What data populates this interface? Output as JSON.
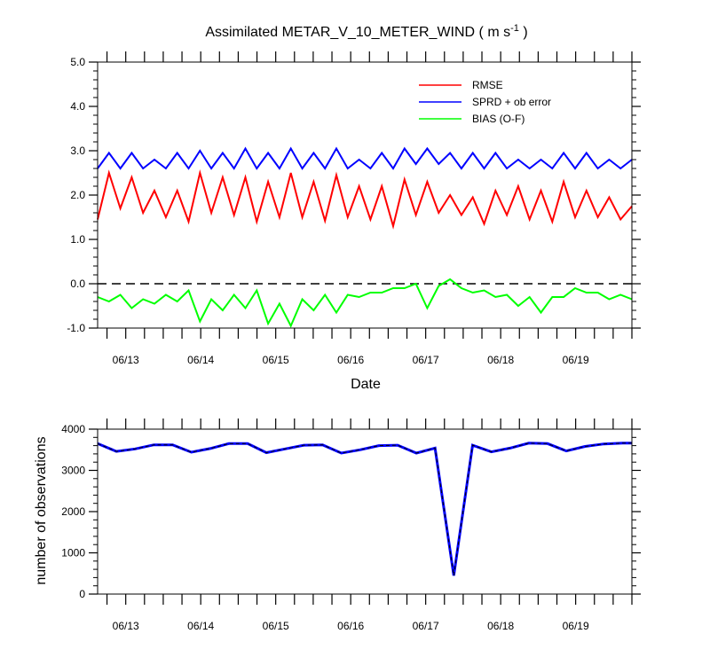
{
  "chart_data": [
    {
      "type": "line",
      "title": "Assimilated METAR_V_10_METER_WIND ( m s",
      "title_unit_exp": "-1",
      "title_suffix": " )",
      "xlabel": "Date",
      "ylabel": "",
      "ylim": [
        -1.0,
        5.0
      ],
      "yticks": [
        "-1.0",
        "0.0",
        "1.0",
        "2.0",
        "3.0",
        "4.0",
        "5.0"
      ],
      "xlim": [
        0,
        28.5
      ],
      "xtick_labels": [
        "06/13",
        "06/14",
        "06/15",
        "06/16",
        "06/17",
        "06/18",
        "06/19"
      ],
      "reference_line": 0.0,
      "legend_position": "top-right",
      "colors": {
        "RMSE": "#ff0000",
        "SPRD": "#0000ff",
        "BIAS": "#00ff00",
        "ref": "#000000"
      },
      "series": [
        {
          "name": "RMSE",
          "values": [
            1.45,
            2.5,
            1.7,
            2.4,
            1.6,
            2.1,
            1.5,
            2.1,
            1.4,
            2.5,
            1.6,
            2.4,
            1.55,
            2.4,
            1.4,
            2.3,
            1.5,
            2.5,
            1.5,
            2.3,
            1.42,
            2.45,
            1.5,
            2.2,
            1.45,
            2.2,
            1.3,
            2.35,
            1.55,
            2.3,
            1.6,
            2.0,
            1.55,
            1.95,
            1.35,
            2.1,
            1.55,
            2.2,
            1.45,
            2.1,
            1.4,
            2.3,
            1.5,
            2.1,
            1.5,
            1.95,
            1.45,
            1.75
          ]
        },
        {
          "name": "SPRD + ob error",
          "values": [
            2.6,
            2.95,
            2.6,
            2.95,
            2.6,
            2.8,
            2.6,
            2.95,
            2.6,
            3.0,
            2.6,
            2.95,
            2.6,
            3.05,
            2.6,
            2.95,
            2.6,
            3.05,
            2.6,
            2.95,
            2.6,
            3.05,
            2.6,
            2.8,
            2.6,
            2.95,
            2.6,
            3.05,
            2.7,
            3.05,
            2.7,
            2.95,
            2.6,
            2.95,
            2.6,
            2.95,
            2.6,
            2.8,
            2.6,
            2.8,
            2.6,
            2.95,
            2.6,
            2.95,
            2.6,
            2.8,
            2.6,
            2.8
          ]
        },
        {
          "name": "BIAS (O-F)",
          "values": [
            -0.3,
            -0.4,
            -0.25,
            -0.55,
            -0.35,
            -0.45,
            -0.25,
            -0.4,
            -0.15,
            -0.85,
            -0.35,
            -0.6,
            -0.25,
            -0.55,
            -0.15,
            -0.9,
            -0.45,
            -0.95,
            -0.35,
            -0.6,
            -0.25,
            -0.65,
            -0.25,
            -0.3,
            -0.2,
            -0.2,
            -0.1,
            -0.1,
            0.0,
            -0.55,
            -0.05,
            0.1,
            -0.1,
            -0.2,
            -0.15,
            -0.3,
            -0.25,
            -0.5,
            -0.3,
            -0.65,
            -0.3,
            -0.3,
            -0.1,
            -0.2,
            -0.2,
            -0.35,
            -0.25,
            -0.35
          ]
        }
      ]
    },
    {
      "type": "line",
      "title": "",
      "xlabel": "",
      "ylabel": "number of observations",
      "ylim": [
        0,
        4000
      ],
      "yticks": [
        "0",
        "1000",
        "2000",
        "3000",
        "4000"
      ],
      "xlim": [
        0,
        28.5
      ],
      "xtick_labels": [
        "06/13",
        "06/14",
        "06/15",
        "06/16",
        "06/17",
        "06/18",
        "06/19"
      ],
      "colors": {
        "possible": "#0000ff",
        "assimilated": "#000000"
      },
      "series": [
        {
          "name": "observations",
          "x": [
            0,
            1,
            2,
            3,
            4,
            5,
            6,
            7,
            8,
            9,
            10,
            11,
            12,
            13,
            14,
            15,
            16,
            17,
            18,
            19,
            20,
            21,
            22,
            23,
            24,
            25,
            26,
            27,
            28,
            28.5
          ],
          "values": [
            3650,
            3460,
            3520,
            3620,
            3620,
            3440,
            3530,
            3650,
            3650,
            3430,
            3520,
            3610,
            3620,
            3420,
            3500,
            3600,
            3610,
            3420,
            3540,
            450,
            3610,
            3450,
            3540,
            3660,
            3650,
            3470,
            3580,
            3640,
            3660,
            3660
          ]
        }
      ]
    }
  ]
}
